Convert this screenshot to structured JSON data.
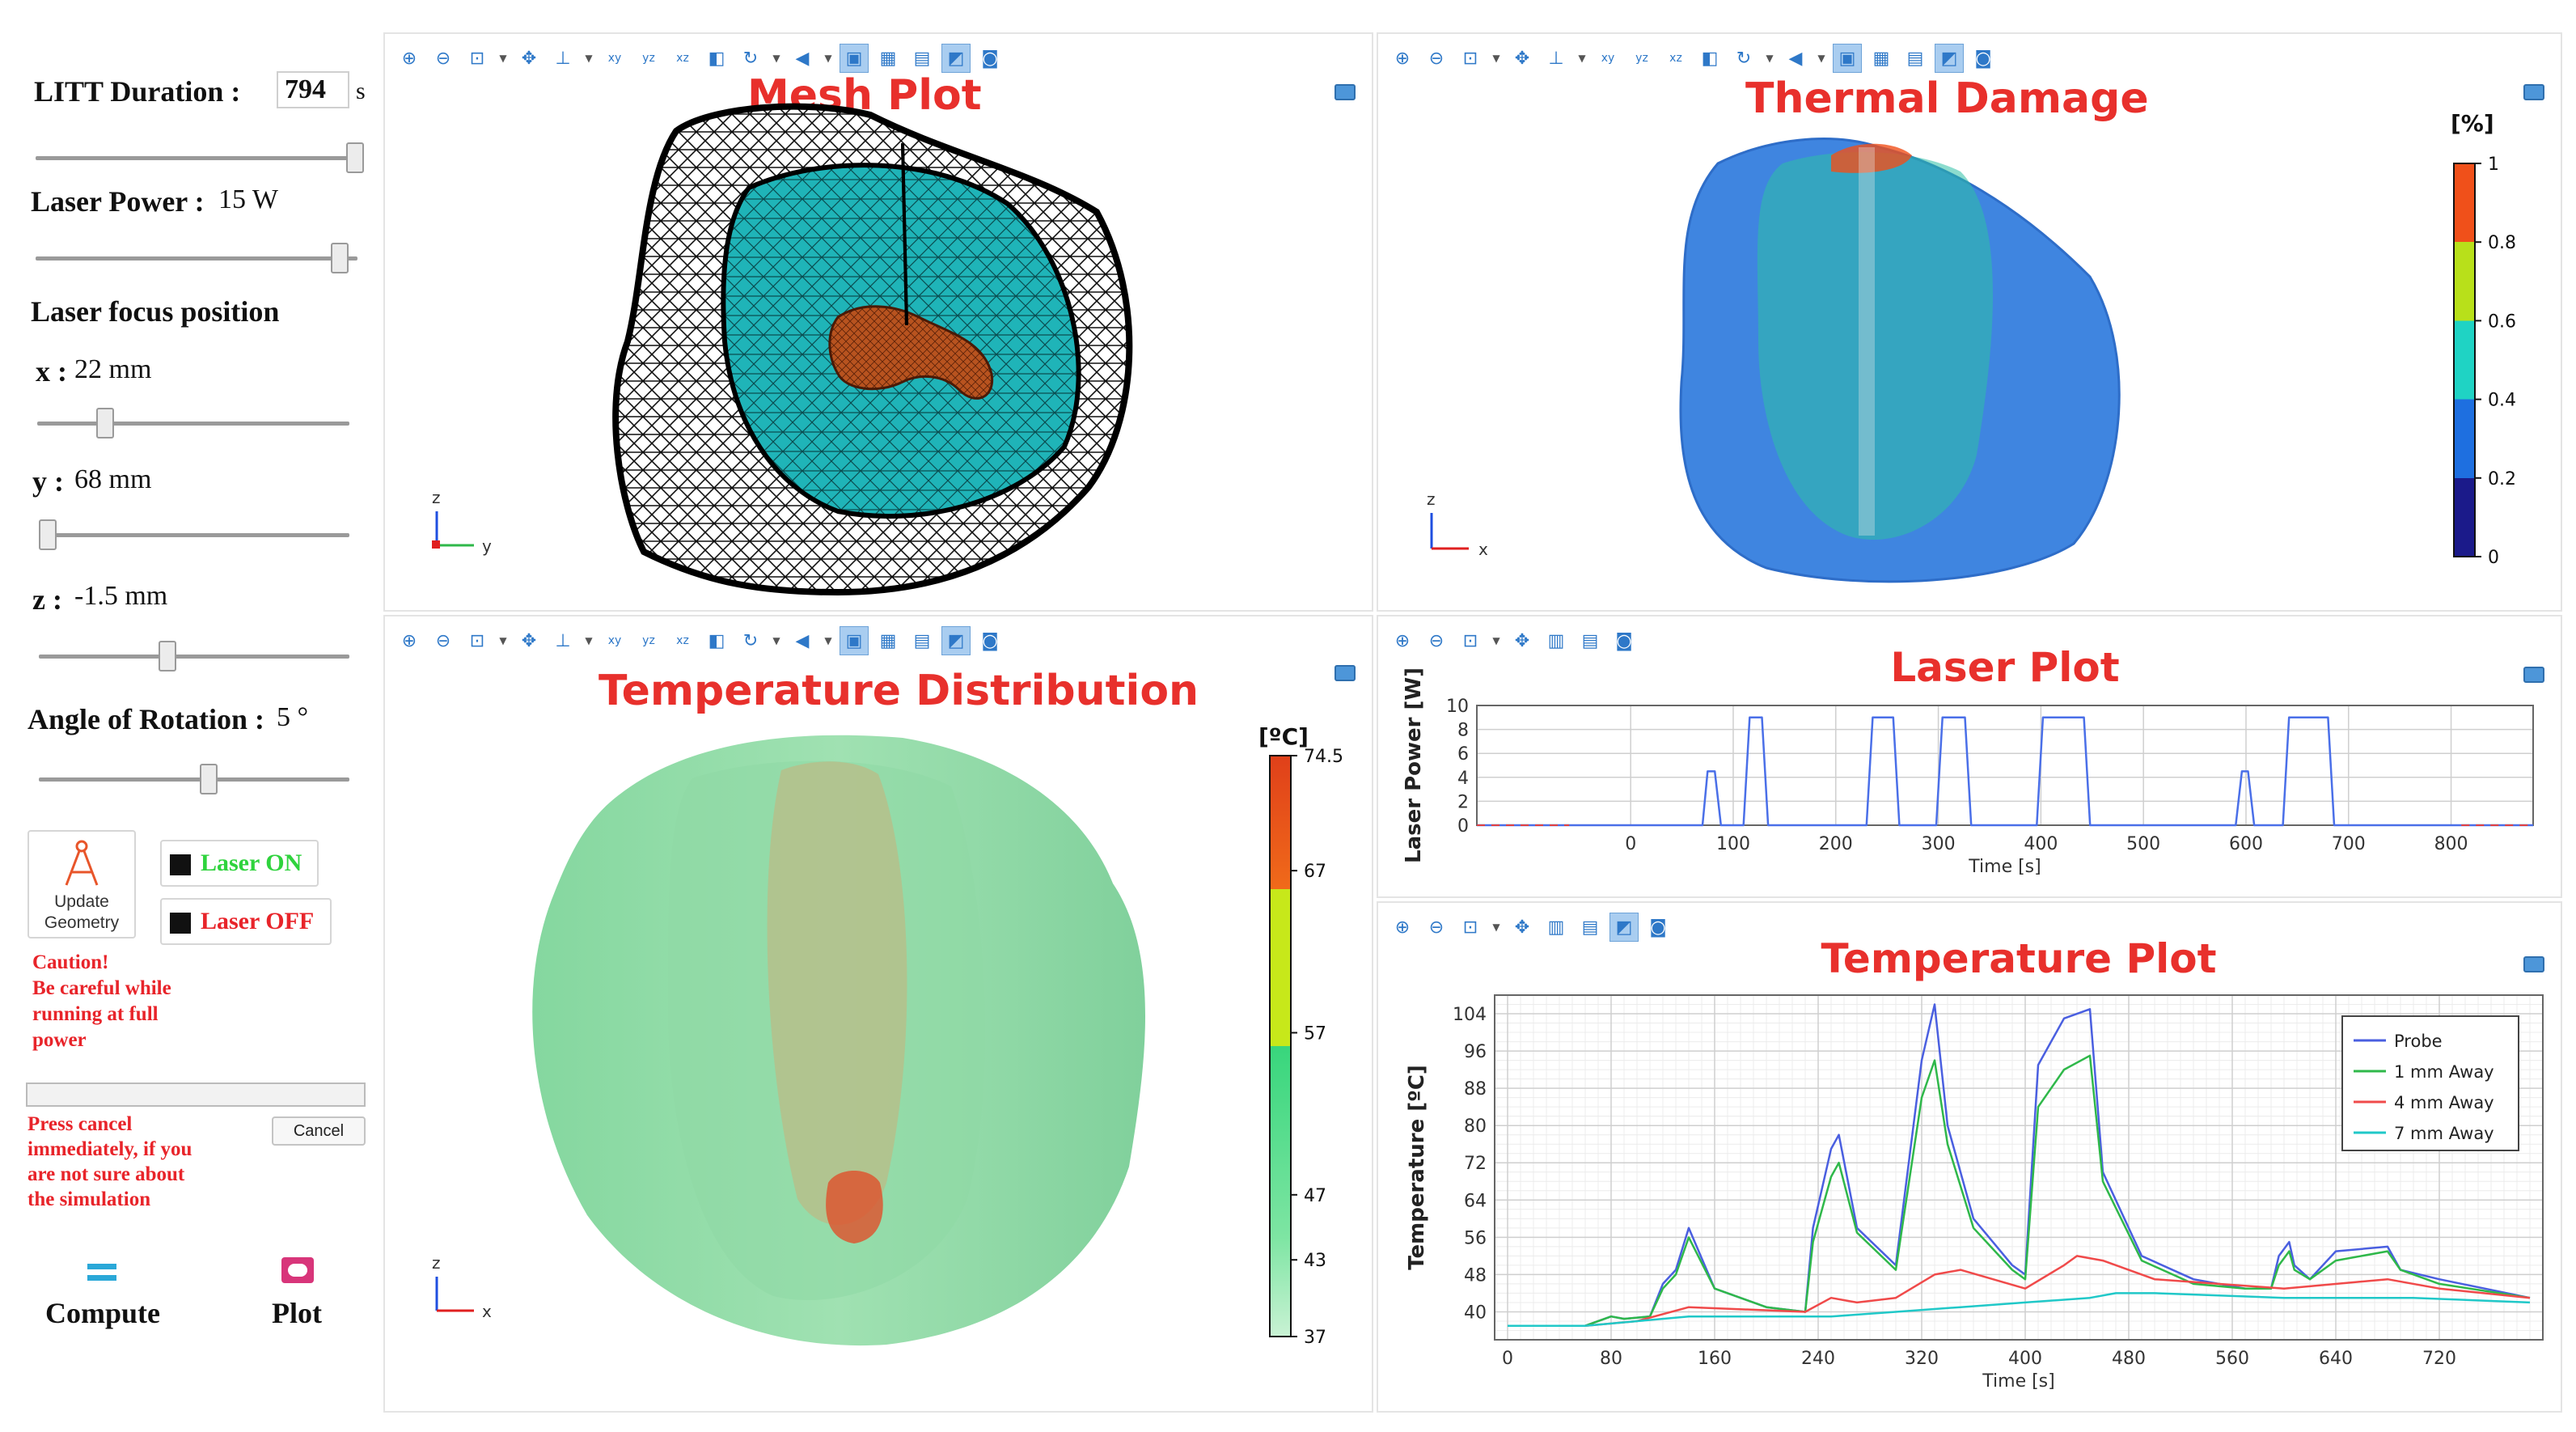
{
  "controls": {
    "duration_label": "LITT Duration :",
    "duration_value": "794",
    "duration_unit": "s",
    "duration_slider": 1.0,
    "power_label": "Laser Power :",
    "power_value": "15 W",
    "power_slider": 0.97,
    "focus_label": "Laser focus position",
    "x_label": "x :",
    "x_value": "22 mm",
    "x_slider": 0.2,
    "y_label": "y :",
    "y_value": "68 mm",
    "y_slider": 0.0,
    "z_label": "z :",
    "z_value": "-1.5 mm",
    "z_slider": 0.41,
    "rotation_label": "Angle of Rotation :",
    "rotation_value": "5 °",
    "rotation_slider": 0.55,
    "update_geometry_label": "Update Geometry",
    "laser_on_label": "Laser ON",
    "laser_off_label": "Laser OFF",
    "caution_lines": [
      "Caution!",
      "Be careful while",
      "running at full",
      "power"
    ],
    "progress": 0.0,
    "cancel_label": "Cancel",
    "cancel_note_lines": [
      "Press cancel",
      "immediately, if you",
      "are not sure about",
      "the simulation"
    ],
    "compute_label": "Compute",
    "plot_label": "Plot",
    "accent_green": "#2fd33d",
    "accent_red": "#e8242a"
  },
  "mesh_plot": {
    "title": "Mesh Plot",
    "axis_up": "z",
    "axis_right": "y"
  },
  "thermal_damage": {
    "title": "Thermal Damage",
    "unit": "[%]",
    "scale_ticks": [
      "1",
      "0.8",
      "0.6",
      "0.4",
      "0.2",
      "0"
    ],
    "axis_up": "z",
    "axis_right": "x"
  },
  "temperature_distribution": {
    "title": "Temperature Distribution",
    "unit": "[ºC]",
    "scale_ticks": [
      "74.5",
      "67",
      "57",
      "47",
      "43",
      "37"
    ],
    "axis_up": "z",
    "axis_right": "x"
  },
  "chart_data": [
    {
      "type": "line",
      "title": "Laser Plot",
      "xlabel": "Time [s]",
      "ylabel": "Laser Power [W]",
      "xlim": [
        -150,
        880
      ],
      "ylim": [
        0,
        10
      ],
      "xticks": [
        "0",
        "100",
        "200",
        "300",
        "400",
        "500",
        "600",
        "700",
        "800"
      ],
      "yticks": [
        "0",
        "2",
        "4",
        "6",
        "8",
        "10"
      ],
      "series": [
        {
          "name": "Laser power",
          "x": [
            -150,
            70,
            75,
            82,
            88,
            94,
            110,
            116,
            128,
            134,
            230,
            236,
            256,
            262,
            298,
            304,
            326,
            332,
            396,
            402,
            442,
            448,
            590,
            596,
            602,
            608,
            636,
            642,
            680,
            686,
            880
          ],
          "y": [
            0,
            0,
            4.5,
            4.5,
            0,
            0,
            0,
            9,
            9,
            0,
            0,
            9,
            9,
            0,
            0,
            9,
            9,
            0,
            0,
            9,
            9,
            0,
            0,
            4.5,
            4.5,
            0,
            0,
            9,
            9,
            0,
            0
          ]
        }
      ]
    },
    {
      "type": "line",
      "title": "Temperature Plot",
      "xlabel": "Time [s]",
      "ylabel": "Temperature [ºC]",
      "xlim": [
        -10,
        800
      ],
      "ylim": [
        34,
        108
      ],
      "xticks": [
        "0",
        "80",
        "160",
        "240",
        "320",
        "400",
        "480",
        "560",
        "640",
        "720"
      ],
      "yticks": [
        "40",
        "48",
        "56",
        "64",
        "72",
        "80",
        "88",
        "96",
        "104"
      ],
      "legend": [
        "Probe",
        "1 mm Away",
        "4 mm Away",
        "7 mm Away"
      ],
      "series": [
        {
          "name": "Probe",
          "x": [
            0,
            60,
            80,
            90,
            110,
            120,
            130,
            140,
            160,
            200,
            230,
            236,
            250,
            256,
            270,
            300,
            320,
            330,
            340,
            360,
            390,
            400,
            410,
            430,
            450,
            460,
            490,
            530,
            570,
            590,
            596,
            604,
            608,
            620,
            640,
            680,
            690,
            720,
            790
          ],
          "y": [
            37,
            37,
            39,
            38.5,
            39,
            46,
            49,
            58,
            45,
            41,
            40,
            58,
            75,
            78,
            58,
            50,
            94,
            106,
            80,
            60,
            50,
            48,
            93,
            103,
            105,
            70,
            52,
            47,
            45,
            45,
            52,
            55,
            50,
            47,
            53,
            54,
            49,
            47,
            43
          ]
        },
        {
          "name": "1 mm Away",
          "x": [
            0,
            60,
            80,
            90,
            110,
            120,
            130,
            140,
            160,
            200,
            230,
            236,
            250,
            256,
            270,
            300,
            320,
            330,
            340,
            360,
            390,
            400,
            410,
            430,
            450,
            460,
            490,
            530,
            570,
            590,
            596,
            604,
            608,
            620,
            640,
            680,
            690,
            720,
            790
          ],
          "y": [
            37,
            37,
            39,
            38.5,
            39,
            45,
            48,
            56,
            45,
            41,
            40,
            55,
            69,
            72,
            57,
            49,
            86,
            94,
            76,
            58,
            49,
            47,
            84,
            92,
            95,
            68,
            51,
            46,
            45,
            45,
            50,
            53,
            49,
            47,
            51,
            53,
            49,
            46,
            43
          ]
        },
        {
          "name": "4 mm Away",
          "x": [
            0,
            60,
            100,
            140,
            230,
            250,
            270,
            300,
            330,
            350,
            400,
            430,
            440,
            460,
            500,
            600,
            680,
            720,
            790
          ],
          "y": [
            37,
            37,
            38,
            41,
            40,
            43,
            42,
            43,
            48,
            49,
            45,
            50,
            52,
            51,
            47,
            45,
            47,
            45,
            43
          ]
        },
        {
          "name": "7 mm Away",
          "x": [
            0,
            60,
            100,
            140,
            250,
            300,
            350,
            400,
            450,
            470,
            500,
            600,
            700,
            790
          ],
          "y": [
            37,
            37,
            38,
            39,
            39,
            40,
            41,
            42,
            43,
            44,
            44,
            43,
            43,
            42
          ]
        }
      ],
      "colors": [
        "#4a5fe0",
        "#2fb84a",
        "#f04a4a",
        "#20c8c8"
      ]
    }
  ]
}
